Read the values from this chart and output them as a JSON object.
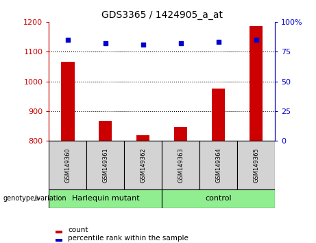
{
  "title": "GDS3365 / 1424905_a_at",
  "samples": [
    "GSM149360",
    "GSM149361",
    "GSM149362",
    "GSM149363",
    "GSM149364",
    "GSM149365"
  ],
  "counts": [
    1065,
    868,
    820,
    848,
    975,
    1185
  ],
  "percentile_ranks": [
    85,
    82,
    81,
    82,
    83,
    85
  ],
  "bar_color": "#CC0000",
  "dot_color": "#0000CC",
  "ylim_left": [
    800,
    1200
  ],
  "ylim_right": [
    0,
    100
  ],
  "yticks_left": [
    800,
    900,
    1000,
    1100,
    1200
  ],
  "yticks_right": [
    0,
    25,
    50,
    75,
    100
  ],
  "left_axis_color": "#CC0000",
  "right_axis_color": "#0000CC",
  "background_color": "#ffffff",
  "plot_bg_color": "#ffffff",
  "sample_area_color": "#d3d3d3",
  "group_area_color": "#90EE90",
  "legend_count_label": "count",
  "legend_pct_label": "percentile rank within the sample",
  "genotype_label": "genotype/variation",
  "group_spans": [
    [
      0,
      3,
      "Harlequin mutant"
    ],
    [
      3,
      6,
      "control"
    ]
  ]
}
